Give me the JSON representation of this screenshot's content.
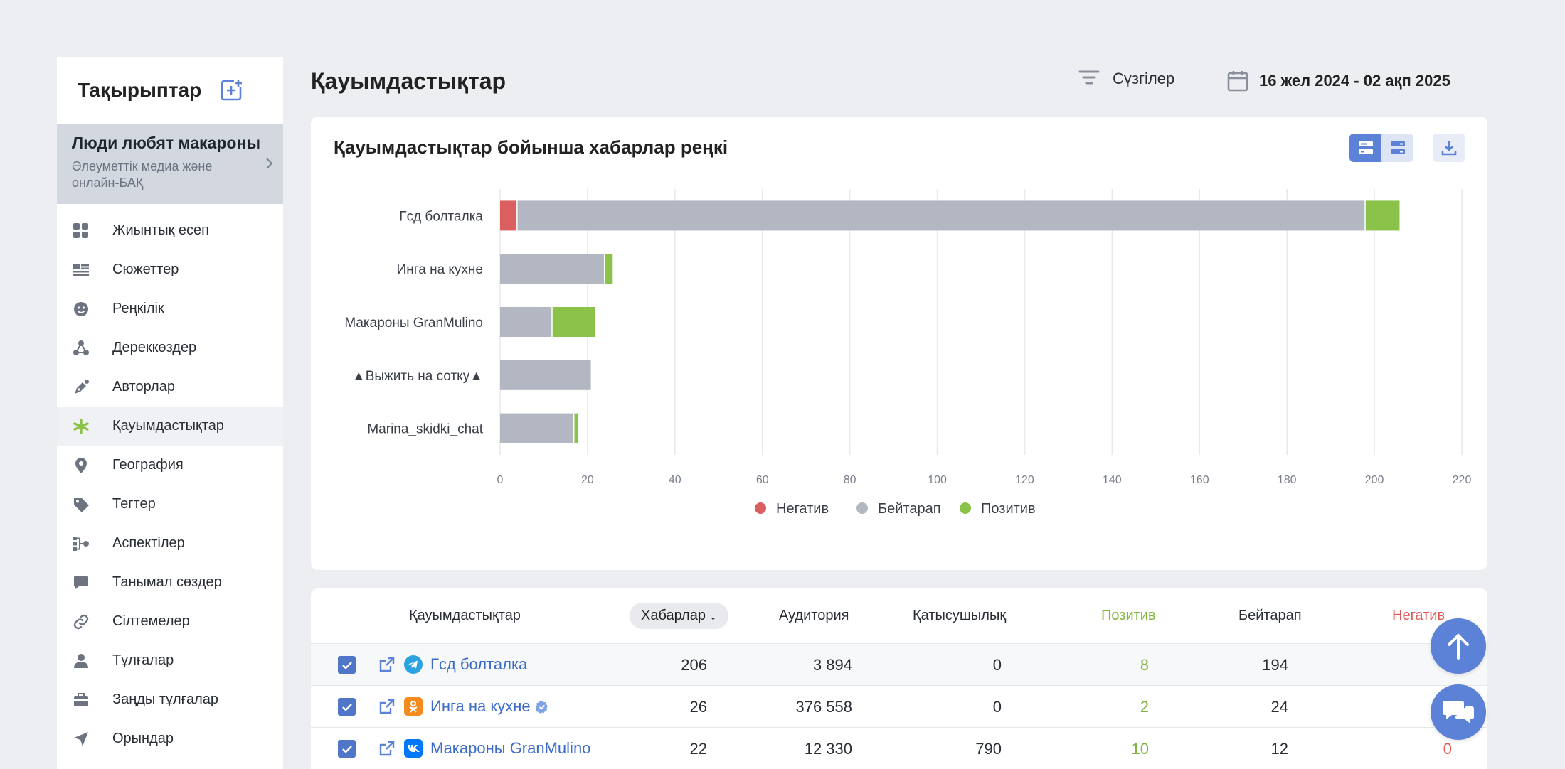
{
  "sidebar": {
    "title": "Тақырыптар",
    "topic": {
      "name": "Люди любят макароны",
      "subtitle": "Әлеуметтік медиа және онлайн-БАҚ"
    },
    "items": [
      {
        "label": "Жиынтық есеп",
        "icon": "dashboard-icon"
      },
      {
        "label": "Сюжеттер",
        "icon": "stories-icon"
      },
      {
        "label": "Реңкілік",
        "icon": "smile-icon"
      },
      {
        "label": "Дереккөздер",
        "icon": "sources-icon"
      },
      {
        "label": "Авторлар",
        "icon": "pen-icon"
      },
      {
        "label": "Қауымдастықтар",
        "icon": "communities-icon",
        "active": true
      },
      {
        "label": "География",
        "icon": "location-pin-icon"
      },
      {
        "label": "Тегтер",
        "icon": "tag-icon"
      },
      {
        "label": "Аспектілер",
        "icon": "aspects-icon"
      },
      {
        "label": "Танымал сөздер",
        "icon": "chat-bubble-icon"
      },
      {
        "label": "Сілтемелер",
        "icon": "link-icon"
      },
      {
        "label": "Тұлғалар",
        "icon": "person-icon"
      },
      {
        "label": "Заңды тұлғалар",
        "icon": "briefcase-icon"
      },
      {
        "label": "Орындар",
        "icon": "navigation-arrow-icon"
      }
    ]
  },
  "header": {
    "title": "Қауымдастықтар",
    "filters_label": "Сүзгілер",
    "date_range": "16 жел 2024 - 02 ақп 2025"
  },
  "chart_card": {
    "title": "Қауымдастықтар бойынша хабарлар реңкі"
  },
  "chart_data": {
    "type": "bar",
    "orientation": "horizontal",
    "stacked": true,
    "categories": [
      "Гсд болталка",
      "Инга на кухне",
      "Макароны GranMulino",
      "▲Выжить на сотку▲",
      "Marina_skidki_chat"
    ],
    "series": [
      {
        "name": "Негатив",
        "color": "#d9605f",
        "values": [
          4,
          0,
          0,
          0,
          0
        ]
      },
      {
        "name": "Бейтарап",
        "color": "#b3b7c2",
        "values": [
          194,
          24,
          12,
          21,
          17
        ]
      },
      {
        "name": "Позитив",
        "color": "#8bc34a",
        "values": [
          8,
          2,
          10,
          0,
          1
        ]
      }
    ],
    "xlim": [
      0,
      220
    ],
    "xticks": [
      0,
      20,
      40,
      60,
      80,
      100,
      120,
      140,
      160,
      180,
      200,
      220
    ],
    "grid": true,
    "legend": "bottom"
  },
  "table": {
    "columns": {
      "community": "Қауымдастықтар",
      "messages": "Хабарлар ↓",
      "audience": "Аудитория",
      "engagement": "Қатысушылық",
      "positive": "Позитив",
      "neutral": "Бейтарап",
      "negative": "Негатив"
    },
    "rows": [
      {
        "name": "Гсд болталка",
        "network": "telegram",
        "messages": "206",
        "audience": "3 894",
        "engagement": "0",
        "positive": "8",
        "neutral": "194",
        "negative": ""
      },
      {
        "name": "Инга на кухне",
        "network": "odnoklassniki",
        "verified": true,
        "messages": "26",
        "audience": "376 558",
        "engagement": "0",
        "positive": "2",
        "neutral": "24",
        "negative": ""
      },
      {
        "name": "Макароны GranMulino",
        "network": "vk",
        "messages": "22",
        "audience": "12 330",
        "engagement": "790",
        "positive": "10",
        "neutral": "12",
        "negative": "0"
      }
    ]
  },
  "colors": {
    "accent": "#5b82d6",
    "positive": "#8bc34a",
    "neutral": "#b3b7c2",
    "negative": "#d9605f",
    "link": "#3c6cc9"
  }
}
